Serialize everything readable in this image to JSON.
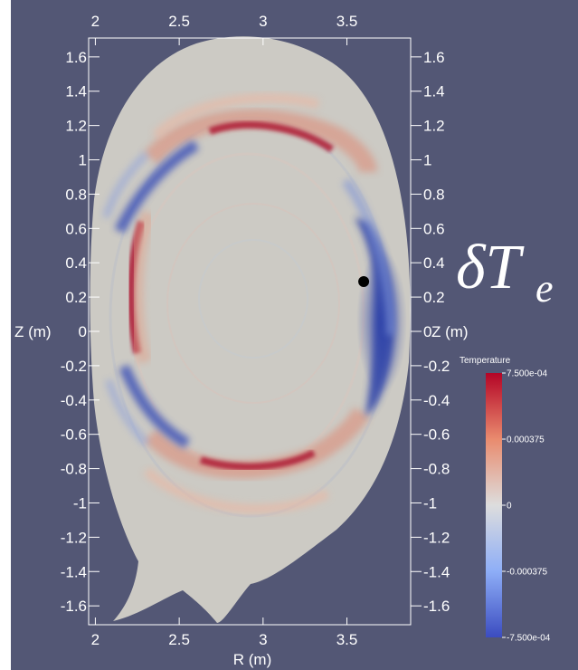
{
  "figure": {
    "field_label_main": "δT",
    "field_label_sub": "e",
    "background_color": "#535775"
  },
  "axes": {
    "x_title": "R (m)",
    "y_title_left": "Z (m)",
    "y_title_right": "Z (m)",
    "x_range": [
      1.96,
      3.88
    ],
    "y_range": [
      -1.71,
      1.71
    ],
    "x_ticks": [
      {
        "value": 2,
        "label": "2"
      },
      {
        "value": 2.5,
        "label": "2.5"
      },
      {
        "value": 3,
        "label": "3"
      },
      {
        "value": 3.5,
        "label": "3.5"
      }
    ],
    "y_ticks": [
      {
        "value": 1.6,
        "label": "1.6"
      },
      {
        "value": 1.4,
        "label": "1.4"
      },
      {
        "value": 1.2,
        "label": "1.2"
      },
      {
        "value": 1,
        "label": "1"
      },
      {
        "value": 0.8,
        "label": "0.8"
      },
      {
        "value": 0.6,
        "label": "0.6"
      },
      {
        "value": 0.4,
        "label": "0.4"
      },
      {
        "value": 0.2,
        "label": "0.2"
      },
      {
        "value": 0,
        "label": "0"
      },
      {
        "value": -0.2,
        "label": "-0.2"
      },
      {
        "value": -0.4,
        "label": "-0.4"
      },
      {
        "value": -0.6,
        "label": "-0.6"
      },
      {
        "value": -0.8,
        "label": "-0.8"
      },
      {
        "value": -1,
        "label": "-1"
      },
      {
        "value": -1.2,
        "label": "-1.2"
      },
      {
        "value": -1.4,
        "label": "-1.4"
      },
      {
        "value": -1.6,
        "label": "-1.6"
      }
    ]
  },
  "colorbar": {
    "title": "Temperature",
    "min": -0.00075,
    "max": 0.00075,
    "labels": [
      {
        "value": 0.00075,
        "label": "7.500e-04"
      },
      {
        "value": 0.000375,
        "label": "0.000375"
      },
      {
        "value": 0,
        "label": "0"
      },
      {
        "value": -0.000375,
        "label": "-0.000375"
      },
      {
        "value": -0.00075,
        "label": "-7.500e-04"
      }
    ],
    "color_max": "#b40426",
    "color_mid": "#dddddd",
    "color_min": "#3b4cc0"
  },
  "marker": {
    "R": 3.6,
    "Z": 0.29,
    "color": "#000000"
  }
}
